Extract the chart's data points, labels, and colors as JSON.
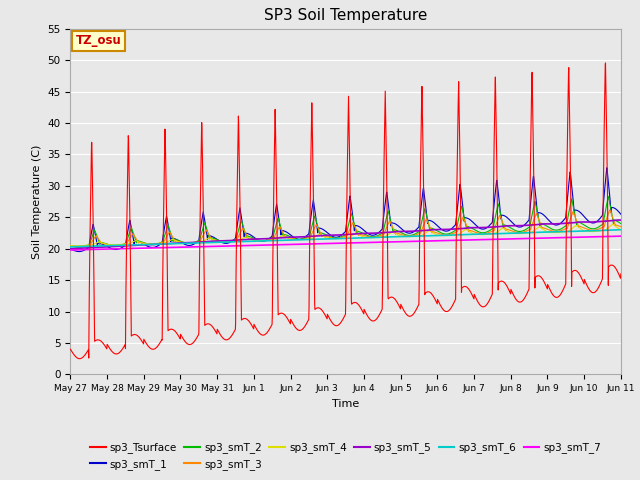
{
  "title": "SP3 Soil Temperature",
  "xlabel": "Time",
  "ylabel": "Soil Temperature (C)",
  "ylim": [
    0,
    55
  ],
  "yticks": [
    0,
    5,
    10,
    15,
    20,
    25,
    30,
    35,
    40,
    45,
    50,
    55
  ],
  "annotation": "TZ_osu",
  "annotation_color": "#cc0000",
  "annotation_bg": "#ffffcc",
  "annotation_border": "#cc8800",
  "bg_color": "#e8e8e8",
  "plot_bg": "#e8e8e8",
  "series_colors": {
    "sp3_Tsurface": "#ff0000",
    "sp3_smT_1": "#0000cc",
    "sp3_smT_2": "#00bb00",
    "sp3_smT_3": "#ff8800",
    "sp3_smT_4": "#dddd00",
    "sp3_smT_5": "#9900cc",
    "sp3_smT_6": "#00cccc",
    "sp3_smT_7": "#ff00ff"
  },
  "num_days": 15,
  "pts_per_day": 144,
  "xtick_labels": [
    "May 27",
    "May 28",
    "May 29",
    "May 30",
    "May 31",
    "Jun 1",
    "Jun 2",
    "Jun 3",
    "Jun 4",
    "Jun 5",
    "Jun 6",
    "Jun 7",
    "Jun 8",
    "Jun 9",
    "Jun 10",
    "Jun 11"
  ]
}
